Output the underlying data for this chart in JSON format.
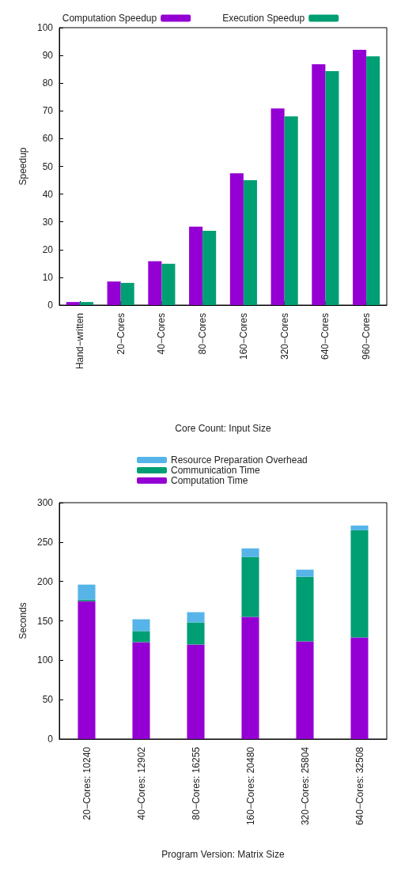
{
  "chart_data": [
    {
      "type": "bar",
      "ylabel": "Speedup",
      "xlabel": "Core Count: Input Size",
      "categories": [
        "Hand−written",
        "20−Cores",
        "40−Cores",
        "80−Cores",
        "160−Cores",
        "320−Cores",
        "640−Cores",
        "960−Cores"
      ],
      "series": [
        {
          "name": "Computation Speedup",
          "color": "#9400d3",
          "values": [
            1.1,
            8.5,
            15.8,
            28.3,
            47.5,
            70.9,
            86.8,
            92.0
          ]
        },
        {
          "name": "Execution Speedup",
          "color": "#009e73",
          "values": [
            1.1,
            8.0,
            14.9,
            26.8,
            45.0,
            68.0,
            84.3,
            89.7
          ]
        }
      ],
      "ylim": [
        0,
        100
      ],
      "yticks": [
        0,
        10,
        20,
        30,
        40,
        50,
        60,
        70,
        80,
        90,
        100
      ],
      "grid": false,
      "legend": "top"
    },
    {
      "type": "bar",
      "stacked": true,
      "ylabel": "Seconds",
      "xlabel": "Program Version: Matrix Size",
      "categories": [
        "20−Cores: 10240",
        "40−Cores: 12902",
        "80−Cores: 16255",
        "160−Cores: 20480",
        "320−Cores: 25804",
        "640−Cores: 32508"
      ],
      "series": [
        {
          "name": "Computation Time",
          "color": "#9400d3",
          "values": [
            175,
            123,
            120,
            155,
            124,
            129
          ]
        },
        {
          "name": "Communication Time",
          "color": "#009e73",
          "values": [
            2,
            14,
            28,
            76,
            82,
            136
          ]
        },
        {
          "name": "Resource Preparation Overhead",
          "color": "#56b4e9",
          "values": [
            19,
            15,
            13,
            11,
            9,
            6
          ]
        }
      ],
      "ylim": [
        0,
        300
      ],
      "yticks": [
        0,
        50,
        100,
        150,
        200,
        250,
        300
      ],
      "grid": false,
      "legend": "top"
    }
  ]
}
